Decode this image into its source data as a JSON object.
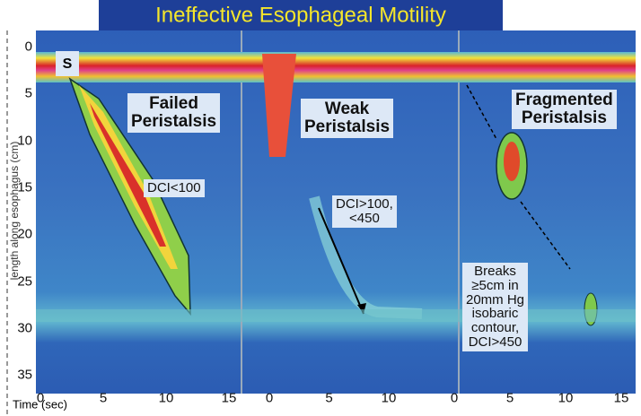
{
  "title": "Ineffective Esophageal Motility",
  "y_axis": {
    "label": "length along esophagus (cm)",
    "ticks": [
      0,
      5,
      10,
      15,
      20,
      25,
      30,
      35
    ]
  },
  "x_axis": {
    "label": "Time (sec)",
    "panels": [
      {
        "ticks": [
          0,
          5,
          10,
          15
        ]
      },
      {
        "ticks": [
          0,
          5,
          10
        ]
      },
      {
        "ticks": [
          0,
          5,
          10,
          15
        ]
      }
    ]
  },
  "sphincter_marker": "S",
  "panels": [
    {
      "title": [
        "Failed",
        "Peristalsis"
      ],
      "note": [
        "DCI<100"
      ]
    },
    {
      "title": [
        "Weak",
        "Peristalsis"
      ],
      "note": [
        "DCI>100,",
        "<450"
      ]
    },
    {
      "title": [
        "Fragmented",
        "Peristalsis"
      ],
      "note": [
        "Breaks",
        "≥5cm in",
        "20mm Hg",
        "isobaric",
        "contour,",
        "DCI>450"
      ]
    }
  ]
}
